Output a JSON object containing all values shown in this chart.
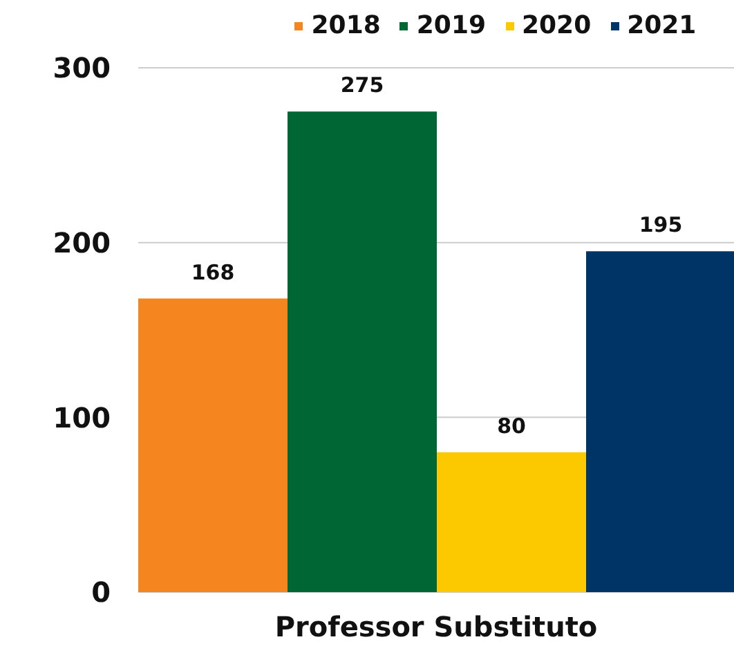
{
  "chart_data": {
    "type": "bar",
    "categories": [
      "Professor Substituto"
    ],
    "series": [
      {
        "name": "2018",
        "color": "#f5861f",
        "values": [
          168
        ]
      },
      {
        "name": "2019",
        "color": "#006633",
        "values": [
          275
        ]
      },
      {
        "name": "2020",
        "color": "#fcc800",
        "values": [
          80
        ]
      },
      {
        "name": "2021",
        "color": "#003366",
        "values": [
          195
        ]
      }
    ],
    "ylim": [
      0,
      300
    ],
    "yticks": [
      0,
      100,
      200,
      300
    ],
    "grid": "y",
    "legend": "top",
    "data_labels": true
  }
}
